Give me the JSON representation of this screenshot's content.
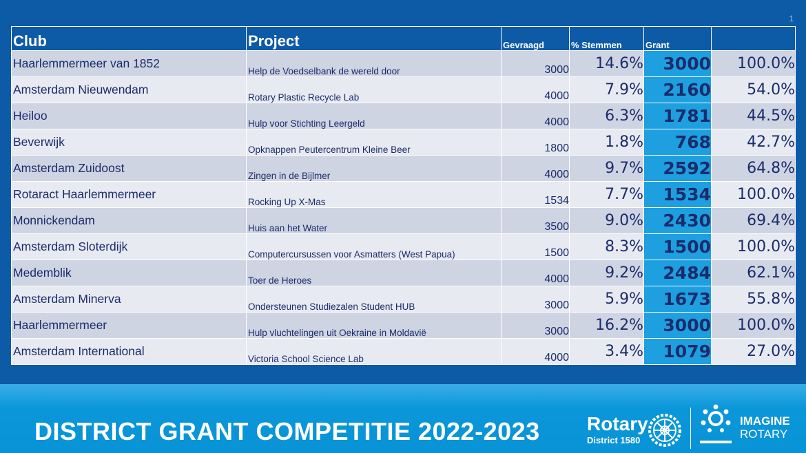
{
  "slide_number": "1",
  "headers": {
    "club": "Club",
    "project": "Project",
    "requested": "Gevraagd",
    "votes": "% Stemmen",
    "grant": "Grant",
    "ratio": ""
  },
  "rows": [
    {
      "club": "Haarlemmermeer  van 1852",
      "project": "Help de Voedselbank de wereld door",
      "requested": "3000",
      "votes": "14.6%",
      "grant": "3000",
      "ratio": "100.0%"
    },
    {
      "club": "Amsterdam  Nieuwendam",
      "project": "Rotary Plastic Recycle Lab",
      "requested": "4000",
      "votes": "7.9%",
      "grant": "2160",
      "ratio": "54.0%"
    },
    {
      "club": "Heiloo",
      "project": "Hulp voor Stichting Leergeld",
      "requested": "4000",
      "votes": "6.3%",
      "grant": "1781",
      "ratio": "44.5%"
    },
    {
      "club": "Beverwijk",
      "project": "Opknappen Peutercentrum  Kleine Beer",
      "requested": "1800",
      "votes": "1.8%",
      "grant": "768",
      "ratio": "42.7%"
    },
    {
      "club": "Amsterdam  Zuidoost",
      "project": "Zingen in de Bijlmer",
      "requested": "4000",
      "votes": "9.7%",
      "grant": "2592",
      "ratio": "64.8%"
    },
    {
      "club": "Rotaract Haarlemmermeer",
      "project": "Rocking Up X-Mas",
      "requested": "1534",
      "votes": "7.7%",
      "grant": "1534",
      "ratio": "100.0%"
    },
    {
      "club": "Monnickendam",
      "project": "Huis aan het Water",
      "requested": "3500",
      "votes": "9.0%",
      "grant": "2430",
      "ratio": "69.4%"
    },
    {
      "club": "Amsterdam  Sloterdijk",
      "project": "Computercursussen  voor Asmatters (West Papua)",
      "requested": "1500",
      "votes": "8.3%",
      "grant": "1500",
      "ratio": "100.0%"
    },
    {
      "club": "Medemblik",
      "project": "Toer de Heroes",
      "requested": "4000",
      "votes": "9.2%",
      "grant": "2484",
      "ratio": "62.1%"
    },
    {
      "club": "Amsterdam  Minerva",
      "project": "Ondersteunen  Studiezalen Student HUB",
      "requested": "3000",
      "votes": "5.9%",
      "grant": "1673",
      "ratio": "55.8%"
    },
    {
      "club": "Haarlemmermeer",
      "project": "Hulp vluchtelingen  uit Oekraine in Moldavië",
      "requested": "3000",
      "votes": "16.2%",
      "grant": "3000",
      "ratio": "100.0%"
    },
    {
      "club": "Amsterdam  International",
      "project": "Victoria School Science Lab",
      "requested": "4000",
      "votes": "3.4%",
      "grant": "1079",
      "ratio": "27.0%"
    }
  ],
  "footer": {
    "title": "DISTRICT GRANT COMPETITIE 2022-2023",
    "rotary_wordmark": "Rotary",
    "rotary_district": "District 1580",
    "imagine_line1": "IMAGINE",
    "imagine_line2": "ROTARY"
  },
  "colors": {
    "background": "#0d5aa7",
    "row_odd": "#cfd4e3",
    "row_even": "#e8eaf1",
    "grant_cell": "#1e9fe0",
    "footer": "#0893d6",
    "text": "#1a2c6b"
  },
  "icons": [
    "rotary-wheel-icon",
    "imagine-rotary-icon"
  ]
}
